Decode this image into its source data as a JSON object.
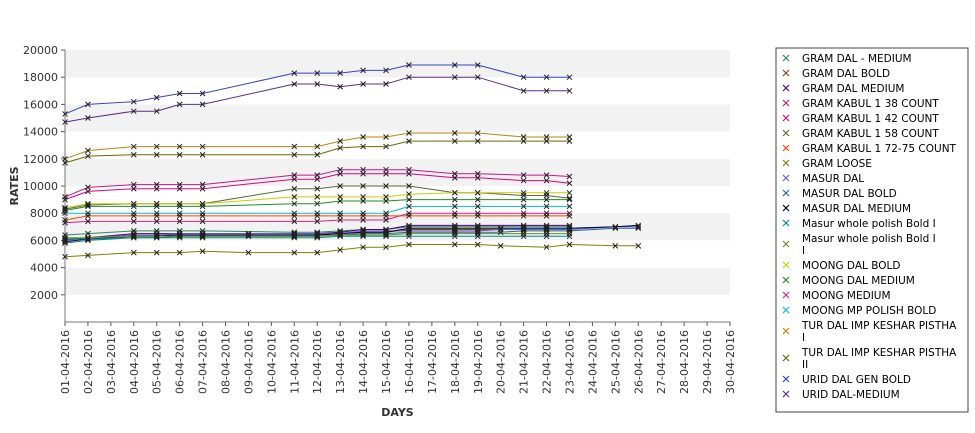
{
  "chart_data": {
    "type": "line",
    "xlabel": "DAYS",
    "ylabel": "RATES",
    "ylim": [
      0,
      20000
    ],
    "yticks": [
      2000,
      4000,
      6000,
      8000,
      10000,
      12000,
      14000,
      16000,
      18000,
      20000
    ],
    "grid": "alternating horizontal bands",
    "legend_placement": "right",
    "x": [
      "01-04-2016",
      "02-04-2016",
      "03-04-2016",
      "04-04-2016",
      "05-04-2016",
      "06-04-2016",
      "07-04-2016",
      "08-04-2016",
      "09-04-2016",
      "10-04-2016",
      "11-04-2016",
      "12-04-2016",
      "13-04-2016",
      "14-04-2016",
      "15-04-2016",
      "16-04-2016",
      "17-04-2016",
      "18-04-2016",
      "19-04-2016",
      "20-04-2016",
      "21-04-2016",
      "22-04-2016",
      "23-04-2016",
      "24-04-2016",
      "25-04-2016",
      "26-04-2016",
      "27-04-2016",
      "28-04-2016",
      "29-04-2016",
      "30-04-2016"
    ],
    "series": [
      {
        "name": "GRAM DAL - MEDIUM",
        "color": "#2e8b57",
        "values": [
          6400,
          6500,
          null,
          6700,
          6700,
          6700,
          6700,
          null,
          null,
          null,
          6600,
          6600,
          6700,
          6800,
          6800,
          7000,
          null,
          7000,
          7000,
          null,
          7000,
          7000,
          7000,
          null,
          null,
          null,
          null,
          null,
          null,
          null
        ]
      },
      {
        "name": "GRAM DAL BOLD",
        "color": "#8b4513",
        "values": [
          6100,
          6200,
          null,
          6400,
          6400,
          6400,
          6400,
          null,
          null,
          null,
          6400,
          6400,
          6500,
          6600,
          6600,
          6800,
          null,
          6800,
          6800,
          null,
          6800,
          6800,
          6800,
          null,
          null,
          null,
          null,
          null,
          null,
          null
        ]
      },
      {
        "name": "GRAM DAL MEDIUM",
        "color": "#4b0082",
        "values": [
          6000,
          6200,
          null,
          6500,
          6500,
          6500,
          6500,
          null,
          null,
          null,
          6500,
          6500,
          6600,
          6800,
          6800,
          7100,
          null,
          7100,
          7100,
          null,
          7100,
          7100,
          7100,
          null,
          null,
          null,
          null,
          null,
          null,
          null
        ]
      },
      {
        "name": "GRAM KABUL 1 38 COUNT",
        "color": "#c71585",
        "values": [
          9200,
          9900,
          null,
          10100,
          10100,
          10100,
          10100,
          null,
          null,
          null,
          10800,
          10800,
          11200,
          11200,
          11200,
          11200,
          null,
          10900,
          10900,
          null,
          10800,
          10800,
          10700,
          null,
          null,
          null,
          null,
          null,
          null,
          null
        ]
      },
      {
        "name": "GRAM KABUL 1 42 COUNT",
        "color": "#e0007a",
        "values": [
          9000,
          9600,
          null,
          9800,
          9800,
          9800,
          9800,
          null,
          null,
          null,
          10500,
          10500,
          10900,
          10900,
          10900,
          10900,
          null,
          10600,
          10600,
          null,
          10400,
          10400,
          10200,
          null,
          null,
          null,
          null,
          null,
          null,
          null
        ]
      },
      {
        "name": "GRAM KABUL 1 58 COUNT",
        "color": "#556b2f",
        "values": [
          8300,
          8600,
          null,
          8700,
          8700,
          8700,
          8700,
          null,
          null,
          null,
          9800,
          9800,
          10000,
          10000,
          10000,
          10000,
          null,
          9500,
          9500,
          null,
          9300,
          9300,
          9100,
          null,
          null,
          null,
          null,
          null,
          null,
          null
        ]
      },
      {
        "name": "GRAM KABUL 1 72-75 COUNT",
        "color": "#ff4500",
        "values": [
          7500,
          7800,
          null,
          7800,
          7800,
          7800,
          7800,
          null,
          null,
          null,
          7800,
          7800,
          7800,
          7800,
          7800,
          7800,
          null,
          7800,
          7800,
          null,
          7800,
          7800,
          7800,
          null,
          null,
          null,
          null,
          null,
          null,
          null
        ]
      },
      {
        "name": "GRAM LOOSE",
        "color": "#808000",
        "values": [
          4800,
          4900,
          null,
          5100,
          5100,
          5100,
          5200,
          null,
          5100,
          null,
          5100,
          5100,
          5300,
          5500,
          5500,
          5700,
          null,
          5700,
          5700,
          5600,
          null,
          5500,
          5700,
          null,
          5600,
          5600,
          null,
          null,
          null,
          null
        ]
      },
      {
        "name": "MASUR DAL",
        "color": "#6a5acd",
        "values": [
          6000,
          6200,
          null,
          6400,
          6400,
          6500,
          6500,
          null,
          6500,
          null,
          6500,
          6500,
          6500,
          6700,
          6700,
          6700,
          null,
          6700,
          6700,
          6800,
          6800,
          6800,
          6800,
          null,
          7000,
          7000,
          null,
          null,
          null,
          null
        ]
      },
      {
        "name": "MASUR DAL BOLD",
        "color": "#1e6e8c",
        "values": [
          5800,
          6000,
          null,
          6200,
          6200,
          6300,
          6300,
          null,
          6300,
          null,
          6300,
          6300,
          6400,
          6500,
          6500,
          6600,
          null,
          6600,
          6600,
          6600,
          6700,
          6700,
          6700,
          null,
          6900,
          6900,
          null,
          null,
          null,
          null
        ]
      },
      {
        "name": "MASUR DAL MEDIUM",
        "color": "#000033",
        "values": [
          5900,
          6100,
          null,
          6300,
          6300,
          6400,
          6400,
          null,
          6400,
          null,
          6400,
          6400,
          6500,
          6600,
          6600,
          6900,
          null,
          6900,
          6900,
          6900,
          6900,
          6900,
          6900,
          null,
          7000,
          7100,
          null,
          null,
          null,
          null
        ]
      },
      {
        "name": "Masur whole polish Bold I",
        "color": "#008b8b",
        "values": [
          6100,
          6100,
          null,
          6200,
          6200,
          6200,
          6200,
          null,
          null,
          null,
          6200,
          6200,
          6300,
          6300,
          6300,
          6300,
          null,
          6300,
          6300,
          null,
          6300,
          6300,
          6300,
          null,
          null,
          null,
          null,
          null,
          null,
          null
        ]
      },
      {
        "name": "Masur whole polish Bold I I",
        "color": "#6b8e23",
        "values": [
          6200,
          6200,
          null,
          6300,
          6300,
          6300,
          6300,
          null,
          null,
          null,
          6300,
          6300,
          6400,
          6400,
          6400,
          6500,
          null,
          6500,
          6500,
          null,
          6500,
          6500,
          6500,
          null,
          null,
          null,
          null,
          null,
          null,
          null
        ]
      },
      {
        "name": "MOONG DAL BOLD",
        "color": "#cccc00",
        "values": [
          8400,
          8700,
          null,
          8700,
          8700,
          8700,
          8700,
          null,
          null,
          null,
          9200,
          9200,
          9200,
          9200,
          9200,
          9400,
          null,
          9500,
          9500,
          null,
          9500,
          9500,
          9500,
          null,
          null,
          null,
          null,
          null,
          null,
          null
        ]
      },
      {
        "name": "MOONG DAL MEDIUM",
        "color": "#228b22",
        "values": [
          8200,
          8500,
          null,
          8500,
          8500,
          8500,
          8500,
          null,
          null,
          null,
          8700,
          8700,
          8900,
          8900,
          8900,
          9000,
          null,
          9000,
          9000,
          null,
          9000,
          9000,
          9000,
          null,
          null,
          null,
          null,
          null,
          null,
          null
        ]
      },
      {
        "name": "MOONG MEDIUM",
        "color": "#d02090",
        "values": [
          7300,
          7400,
          null,
          7400,
          7400,
          7400,
          7400,
          null,
          null,
          null,
          7400,
          7400,
          7500,
          7500,
          7500,
          8000,
          null,
          8000,
          8000,
          null,
          8000,
          8000,
          8000,
          null,
          null,
          null,
          null,
          null,
          null,
          null
        ]
      },
      {
        "name": "MOONG MP POLISH BOLD",
        "color": "#00bcd4",
        "values": [
          8000,
          8000,
          null,
          8000,
          8000,
          8000,
          8000,
          null,
          null,
          null,
          8000,
          8000,
          8000,
          8000,
          8000,
          8500,
          null,
          8500,
          8500,
          null,
          8500,
          8500,
          8500,
          null,
          null,
          null,
          null,
          null,
          null,
          null
        ]
      },
      {
        "name": "TUR DAL IMP KESHAR PISTHA I",
        "color": "#b8860b",
        "values": [
          12000,
          12600,
          null,
          12900,
          12900,
          12900,
          12900,
          null,
          null,
          null,
          12900,
          12900,
          13300,
          13600,
          13600,
          13900,
          null,
          13900,
          13900,
          null,
          13600,
          13600,
          13600,
          null,
          null,
          null,
          null,
          null,
          null,
          null
        ]
      },
      {
        "name": "TUR DAL IMP KESHAR PISTHA II",
        "color": "#6b6b00",
        "values": [
          11700,
          12200,
          null,
          12300,
          12300,
          12300,
          12300,
          null,
          null,
          null,
          12300,
          12300,
          12800,
          12900,
          12900,
          13300,
          null,
          13300,
          13300,
          null,
          13300,
          13300,
          13300,
          null,
          null,
          null,
          null,
          null,
          null,
          null
        ]
      },
      {
        "name": "URID DAL GEN BOLD",
        "color": "#3344cc",
        "values": [
          15300,
          16000,
          null,
          16200,
          16500,
          16800,
          16800,
          null,
          null,
          null,
          18300,
          18300,
          18300,
          18500,
          18500,
          18900,
          null,
          18900,
          18900,
          null,
          18000,
          18000,
          18000,
          null,
          null,
          null,
          null,
          null,
          null,
          null
        ]
      },
      {
        "name": "URID DAL-MEDIUM",
        "color": "#5b2c8c",
        "values": [
          14700,
          15000,
          null,
          15500,
          15500,
          16000,
          16000,
          null,
          null,
          null,
          17500,
          17500,
          17300,
          17500,
          17500,
          18000,
          null,
          18000,
          18000,
          null,
          17000,
          17000,
          17000,
          null,
          null,
          null,
          null,
          null,
          null,
          null
        ]
      }
    ]
  }
}
